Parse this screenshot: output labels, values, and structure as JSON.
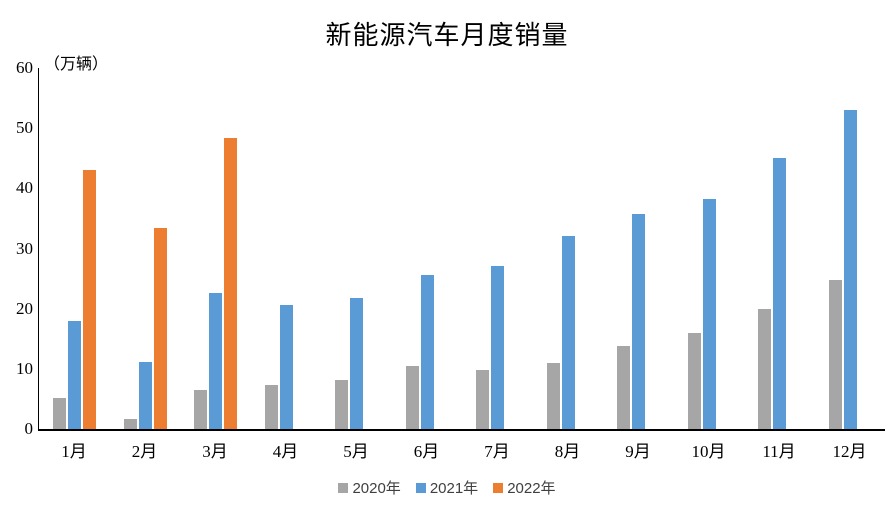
{
  "chart": {
    "title": "新能源汽车月度销量",
    "unit_label": "（万辆）"
  },
  "chart_data": {
    "type": "bar",
    "title": "新能源汽车月度销量",
    "ylabel": "（万辆）",
    "xlabel": "",
    "categories": [
      "1月",
      "2月",
      "3月",
      "4月",
      "5月",
      "6月",
      "7月",
      "8月",
      "9月",
      "10月",
      "11月",
      "12月"
    ],
    "series": [
      {
        "name": "2020年",
        "color": "#A6A6A6",
        "values": [
          5.2,
          1.7,
          6.5,
          7.3,
          8.2,
          10.4,
          9.8,
          11.0,
          13.8,
          16.0,
          20.0,
          24.8
        ]
      },
      {
        "name": "2021年",
        "color": "#5B9BD5",
        "values": [
          17.9,
          11.1,
          22.6,
          20.6,
          21.7,
          25.6,
          27.1,
          32.1,
          35.7,
          38.3,
          45.0,
          53.1
        ]
      },
      {
        "name": "2022年",
        "color": "#ED7D31",
        "values": [
          43.1,
          33.4,
          48.4,
          null,
          null,
          null,
          null,
          null,
          null,
          null,
          null,
          null
        ]
      }
    ],
    "ylim": [
      0,
      60
    ],
    "ytick_step": 10,
    "ytick_labels": [
      "0",
      "10",
      "20",
      "30",
      "40",
      "50",
      "60"
    ],
    "grid": false,
    "legend_position": "bottom",
    "legend_entries": [
      "2020年",
      "2021年",
      "2022年"
    ]
  }
}
